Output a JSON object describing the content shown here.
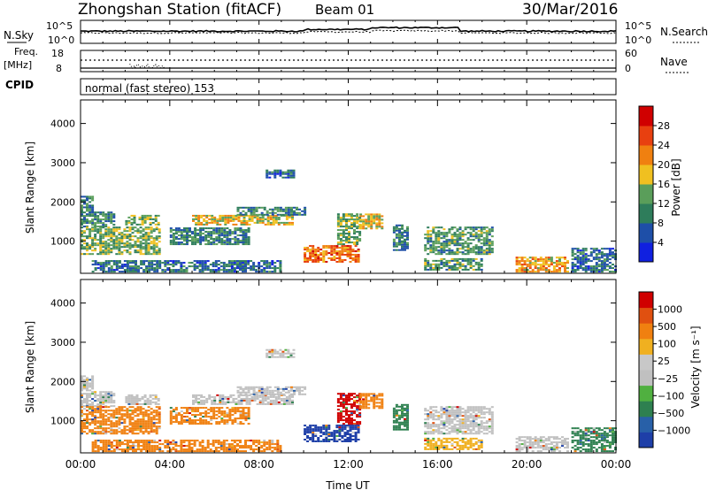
{
  "header": {
    "station": "Zhongshan Station (fitACF)",
    "beam": "Beam 01",
    "date": "30/Mar/2016"
  },
  "top_panels": {
    "nsky_label": "N.Sky",
    "nsky_ticks": [
      "10^5",
      "10^0"
    ],
    "nsearch_label": "N.Search",
    "nsearch_ticks": [
      "10^5",
      "10^0"
    ],
    "freq_label_1": "Freq.",
    "freq_label_2": "[MHz]",
    "freq_ticks": [
      "18",
      "8"
    ],
    "nave_label": "Nave",
    "nave_ticks": [
      "60",
      "0"
    ],
    "cpid_label": "CPID",
    "cpid_text": "normal (fast stereo) 153"
  },
  "colors": {
    "power_scale": [
      "#1020e0",
      "#1e4fa8",
      "#2e7d5b",
      "#5a9e5a",
      "#f0c020",
      "#f08010",
      "#e84010",
      "#d00000"
    ],
    "velocity_scale": [
      "#1e3fa8",
      "#2860a8",
      "#2e8050",
      "#50b040",
      "#c0c0c0",
      "#c8c8c8",
      "#f0b020",
      "#f08010",
      "#e05010",
      "#d00000"
    ]
  },
  "chart_data": [
    {
      "type": "heatmap",
      "name": "power",
      "ylabel": "Slant Range [km]",
      "yticks": [
        1000,
        2000,
        3000,
        4000
      ],
      "ylim": [
        180,
        4600
      ],
      "xlim": [
        0,
        24
      ],
      "colorbar_label": "Power [dB]",
      "colorbar_ticks": [
        "4",
        "8",
        "12",
        "16",
        "20",
        "24",
        "28"
      ],
      "color_range": [
        0,
        32
      ],
      "regions": [
        {
          "t0": 0.0,
          "t1": 0.5,
          "r0": 1750,
          "r1": 2150,
          "v": 10
        },
        {
          "t0": 0.0,
          "t1": 1.5,
          "r0": 1350,
          "r1": 1750,
          "v": 10
        },
        {
          "t0": 0.0,
          "t1": 3.5,
          "r0": 650,
          "r1": 1350,
          "v": 14
        },
        {
          "t0": 2.0,
          "t1": 3.5,
          "r0": 1400,
          "r1": 1650,
          "v": 14
        },
        {
          "t0": 5.0,
          "t1": 9.5,
          "r0": 1400,
          "r1": 1650,
          "v": 18
        },
        {
          "t0": 7.0,
          "t1": 10.0,
          "r0": 1650,
          "r1": 1850,
          "v": 10
        },
        {
          "t0": 4.0,
          "t1": 7.5,
          "r0": 900,
          "r1": 1350,
          "v": 10
        },
        {
          "t0": 8.3,
          "t1": 9.5,
          "r0": 2600,
          "r1": 2800,
          "v": 8
        },
        {
          "t0": 10.0,
          "t1": 12.5,
          "r0": 450,
          "r1": 900,
          "v": 24
        },
        {
          "t0": 11.5,
          "t1": 12.5,
          "r0": 900,
          "r1": 1700,
          "v": 14
        },
        {
          "t0": 12.5,
          "t1": 13.5,
          "r0": 1300,
          "r1": 1700,
          "v": 18
        },
        {
          "t0": 14.0,
          "t1": 14.6,
          "r0": 750,
          "r1": 1400,
          "v": 10
        },
        {
          "t0": 15.4,
          "t1": 18.5,
          "r0": 650,
          "r1": 1350,
          "v": 12
        },
        {
          "t0": 15.4,
          "t1": 18.0,
          "r0": 250,
          "r1": 550,
          "v": 12
        },
        {
          "t0": 19.5,
          "t1": 21.8,
          "r0": 200,
          "r1": 600,
          "v": 20
        },
        {
          "t0": 22.0,
          "t1": 24.0,
          "r0": 200,
          "r1": 800,
          "v": 8
        },
        {
          "t0": 0.5,
          "t1": 9.0,
          "r0": 200,
          "r1": 500,
          "v": 8
        }
      ]
    },
    {
      "type": "heatmap",
      "name": "velocity",
      "ylabel": "Slant Range [km]",
      "yticks": [
        1000,
        2000,
        3000,
        4000
      ],
      "ylim": [
        180,
        4600
      ],
      "xlim": [
        0,
        24
      ],
      "xticks": [
        "00:00",
        "04:00",
        "08:00",
        "12:00",
        "16:00",
        "20:00",
        "00:00"
      ],
      "xlabel": "Time UT",
      "colorbar_label": "Velocity [m s⁻¹]",
      "colorbar_ticks": [
        "1000",
        "500",
        "100",
        "25",
        "−25",
        "−100",
        "−500",
        "−1000"
      ],
      "regions": [
        {
          "t0": 0.0,
          "t1": 0.5,
          "r0": 1750,
          "r1": 2150,
          "v": "gray"
        },
        {
          "t0": 0.0,
          "t1": 1.5,
          "r0": 1350,
          "r1": 1750,
          "v": "gray"
        },
        {
          "t0": 0.0,
          "t1": 3.5,
          "r0": 650,
          "r1": 1350,
          "v": "orange"
        },
        {
          "t0": 2.0,
          "t1": 3.5,
          "r0": 1400,
          "r1": 1650,
          "v": "gray"
        },
        {
          "t0": 5.0,
          "t1": 9.5,
          "r0": 1400,
          "r1": 1650,
          "v": "gray"
        },
        {
          "t0": 7.0,
          "t1": 10.0,
          "r0": 1650,
          "r1": 1850,
          "v": "gray"
        },
        {
          "t0": 4.0,
          "t1": 7.5,
          "r0": 900,
          "r1": 1350,
          "v": "orange"
        },
        {
          "t0": 8.3,
          "t1": 9.5,
          "r0": 2600,
          "r1": 2800,
          "v": "gray"
        },
        {
          "t0": 10.0,
          "t1": 12.5,
          "r0": 450,
          "r1": 900,
          "v": "blue"
        },
        {
          "t0": 11.5,
          "t1": 12.5,
          "r0": 900,
          "r1": 1700,
          "v": "red"
        },
        {
          "t0": 12.5,
          "t1": 13.5,
          "r0": 1300,
          "r1": 1700,
          "v": "orange"
        },
        {
          "t0": 14.0,
          "t1": 14.6,
          "r0": 750,
          "r1": 1400,
          "v": "green"
        },
        {
          "t0": 15.4,
          "t1": 18.5,
          "r0": 650,
          "r1": 1350,
          "v": "gray"
        },
        {
          "t0": 15.4,
          "t1": 18.0,
          "r0": 250,
          "r1": 550,
          "v": "yellow"
        },
        {
          "t0": 19.5,
          "t1": 21.8,
          "r0": 200,
          "r1": 600,
          "v": "gray"
        },
        {
          "t0": 22.0,
          "t1": 24.0,
          "r0": 200,
          "r1": 800,
          "v": "green"
        },
        {
          "t0": 0.5,
          "t1": 9.0,
          "r0": 200,
          "r1": 500,
          "v": "orange"
        }
      ]
    }
  ]
}
